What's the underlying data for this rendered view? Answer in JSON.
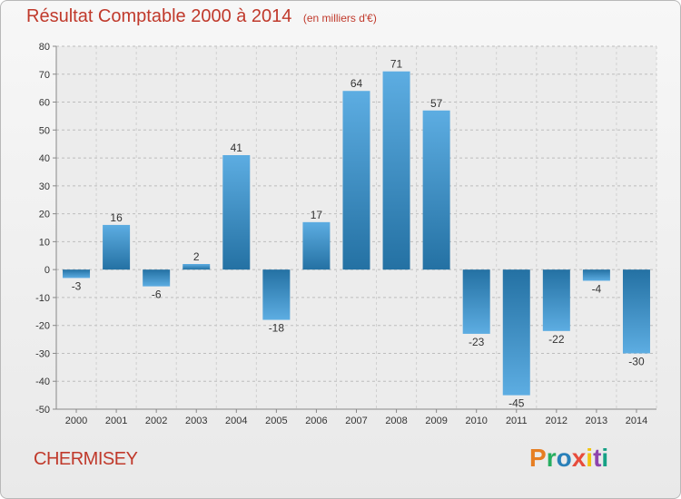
{
  "header": {
    "title": "Résultat Comptable 2000 à 2014",
    "subtitle": "(en milliers d'€)"
  },
  "footer": {
    "place": "CHERMISEY",
    "logo": "Proxiti"
  },
  "colors": {
    "title": "#c0392b",
    "bar_light": "#5dade2",
    "bar_dark": "#2471a3",
    "logo_letters": [
      "#e67e22",
      "#27ae60",
      "#2980b9",
      "#e74c3c",
      "#f1c40f",
      "#8e44ad",
      "#16a085"
    ]
  },
  "chart_data": {
    "type": "bar",
    "title": "Résultat Comptable 2000 à 2014",
    "subtitle": "(en milliers d'€)",
    "categories": [
      "2000",
      "2001",
      "2002",
      "2003",
      "2004",
      "2005",
      "2006",
      "2007",
      "2008",
      "2009",
      "2010",
      "2011",
      "2012",
      "2013",
      "2014"
    ],
    "values": [
      -3,
      16,
      -6,
      2,
      41,
      -18,
      17,
      64,
      71,
      57,
      -23,
      -45,
      -22,
      -4,
      -30
    ],
    "data_labels": [
      "-3",
      "16",
      "-6",
      "2",
      "41",
      "-18",
      "17",
      "64",
      "71",
      "57",
      "-23",
      "-45",
      "-22",
      "-4",
      "-30"
    ],
    "ylim": [
      -50,
      80
    ],
    "yticks": [
      -50,
      -40,
      -30,
      -20,
      -10,
      0,
      10,
      20,
      30,
      40,
      50,
      60,
      70,
      80
    ],
    "grid": true,
    "xlabel": "",
    "ylabel": ""
  }
}
